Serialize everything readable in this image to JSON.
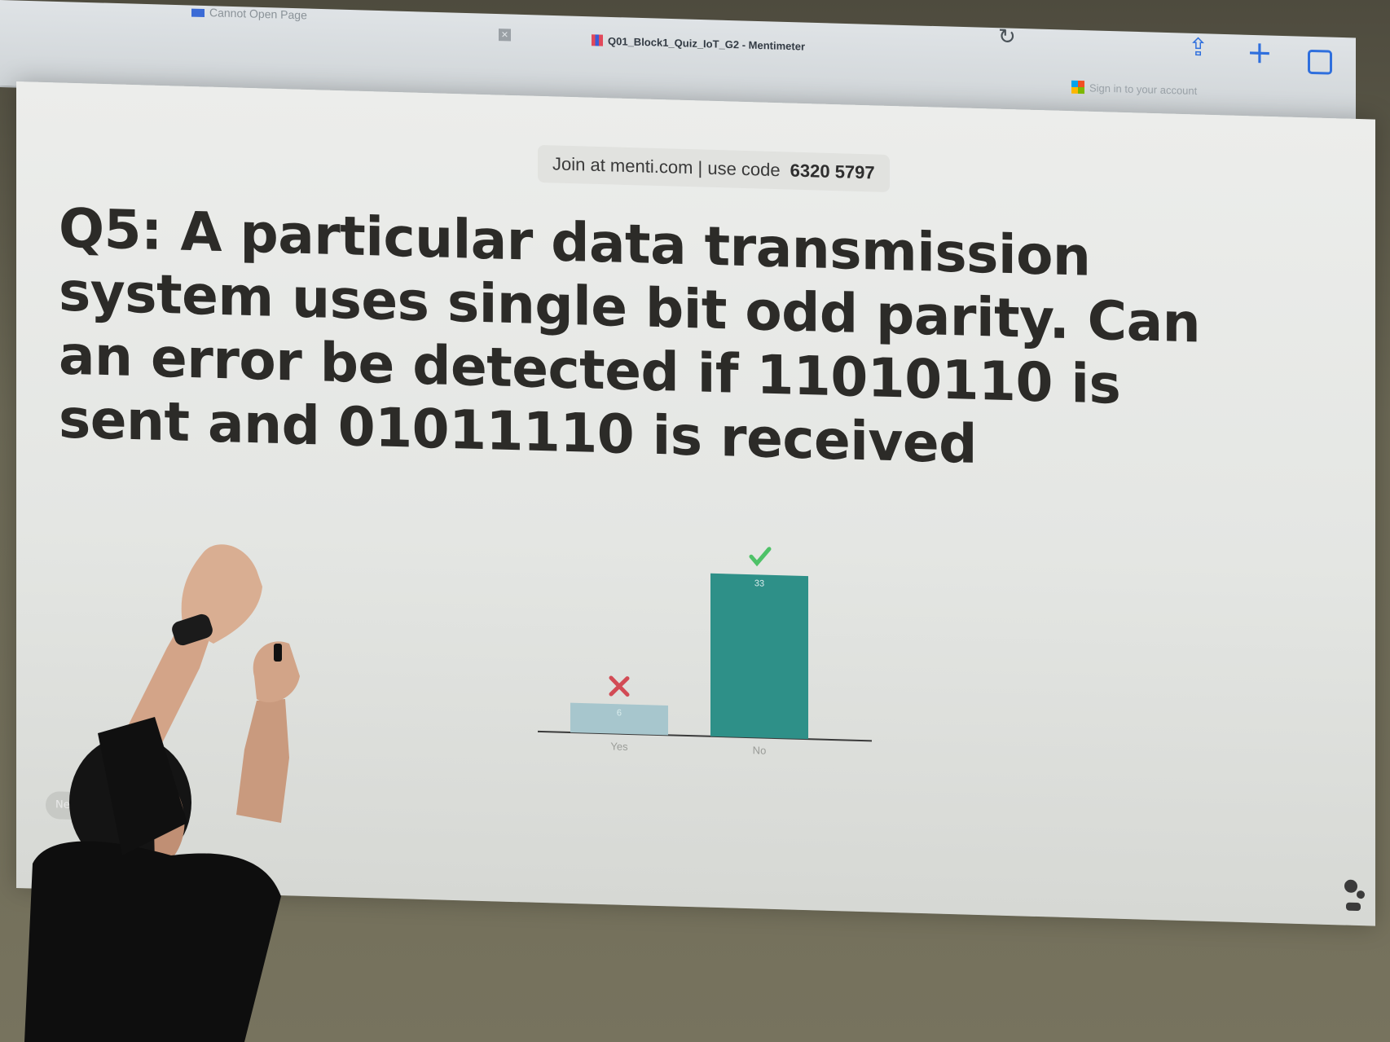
{
  "browser": {
    "tabs": [
      {
        "label": "Cannot Open Page"
      },
      {
        "label": "Q01_Block1_Quiz_IoT_G2 - Mentimeter",
        "active": true
      }
    ],
    "signin_label": "Sign in to your account",
    "icons": [
      "reload-icon",
      "share-icon",
      "plus-icon",
      "tabs-icon",
      "close-tab-icon"
    ]
  },
  "slide": {
    "join_text": "Join at menti.com | use code",
    "join_code": "6320 5797",
    "question": "Q5: A particular data transmission system uses single bit odd parity. Can an error be detected if 11010110 is sent and 01011110 is received",
    "nav_hint": "Nex"
  },
  "chart_data": {
    "type": "bar",
    "categories": [
      "Yes",
      "No"
    ],
    "values": [
      6,
      33
    ],
    "correct": [
      false,
      true
    ],
    "colors": [
      "#a7c6cd",
      "#2e9088"
    ],
    "markers": {
      "wrong": "#d24b55",
      "right": "#4ec268"
    }
  }
}
